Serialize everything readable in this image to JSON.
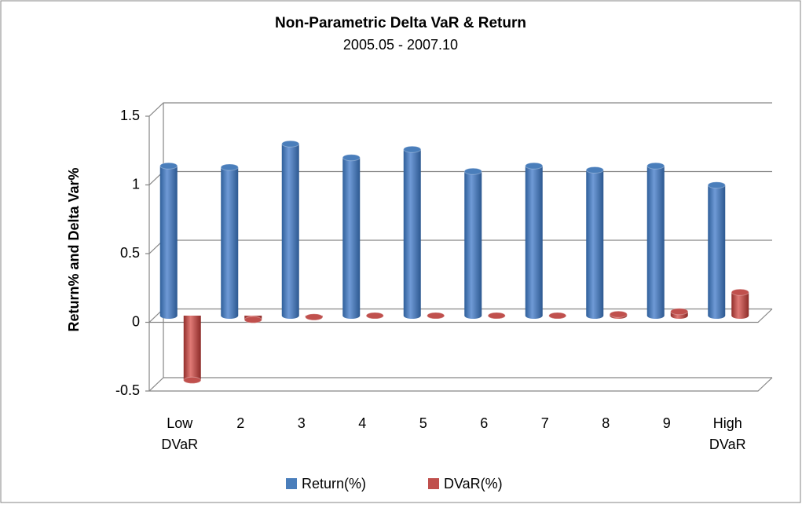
{
  "chart_data": {
    "type": "bar3d",
    "title": "Non-Parametric Delta VaR & Return",
    "subtitle": "2005.05 - 2007.10",
    "y_label": "Return% and Delta Var%",
    "categories": [
      "Low DVaR",
      "2",
      "3",
      "4",
      "5",
      "6",
      "7",
      "8",
      "9",
      "High DVaR"
    ],
    "series": [
      {
        "name": "Return(%)",
        "color": "#4a7ebb",
        "values": [
          1.09,
          1.08,
          1.25,
          1.15,
          1.21,
          1.05,
          1.09,
          1.06,
          1.09,
          0.95
        ]
      },
      {
        "name": "DVaR(%)",
        "color": "#c0504d",
        "values": [
          -0.47,
          -0.03,
          -0.01,
          0.0,
          0.0,
          0.0,
          0.0,
          0.01,
          0.03,
          0.17
        ]
      }
    ],
    "ylim": [
      -0.5,
      1.5
    ],
    "yticks": [
      -0.5,
      0,
      0.5,
      1,
      1.5
    ],
    "grid": true,
    "legend": "bottom"
  }
}
